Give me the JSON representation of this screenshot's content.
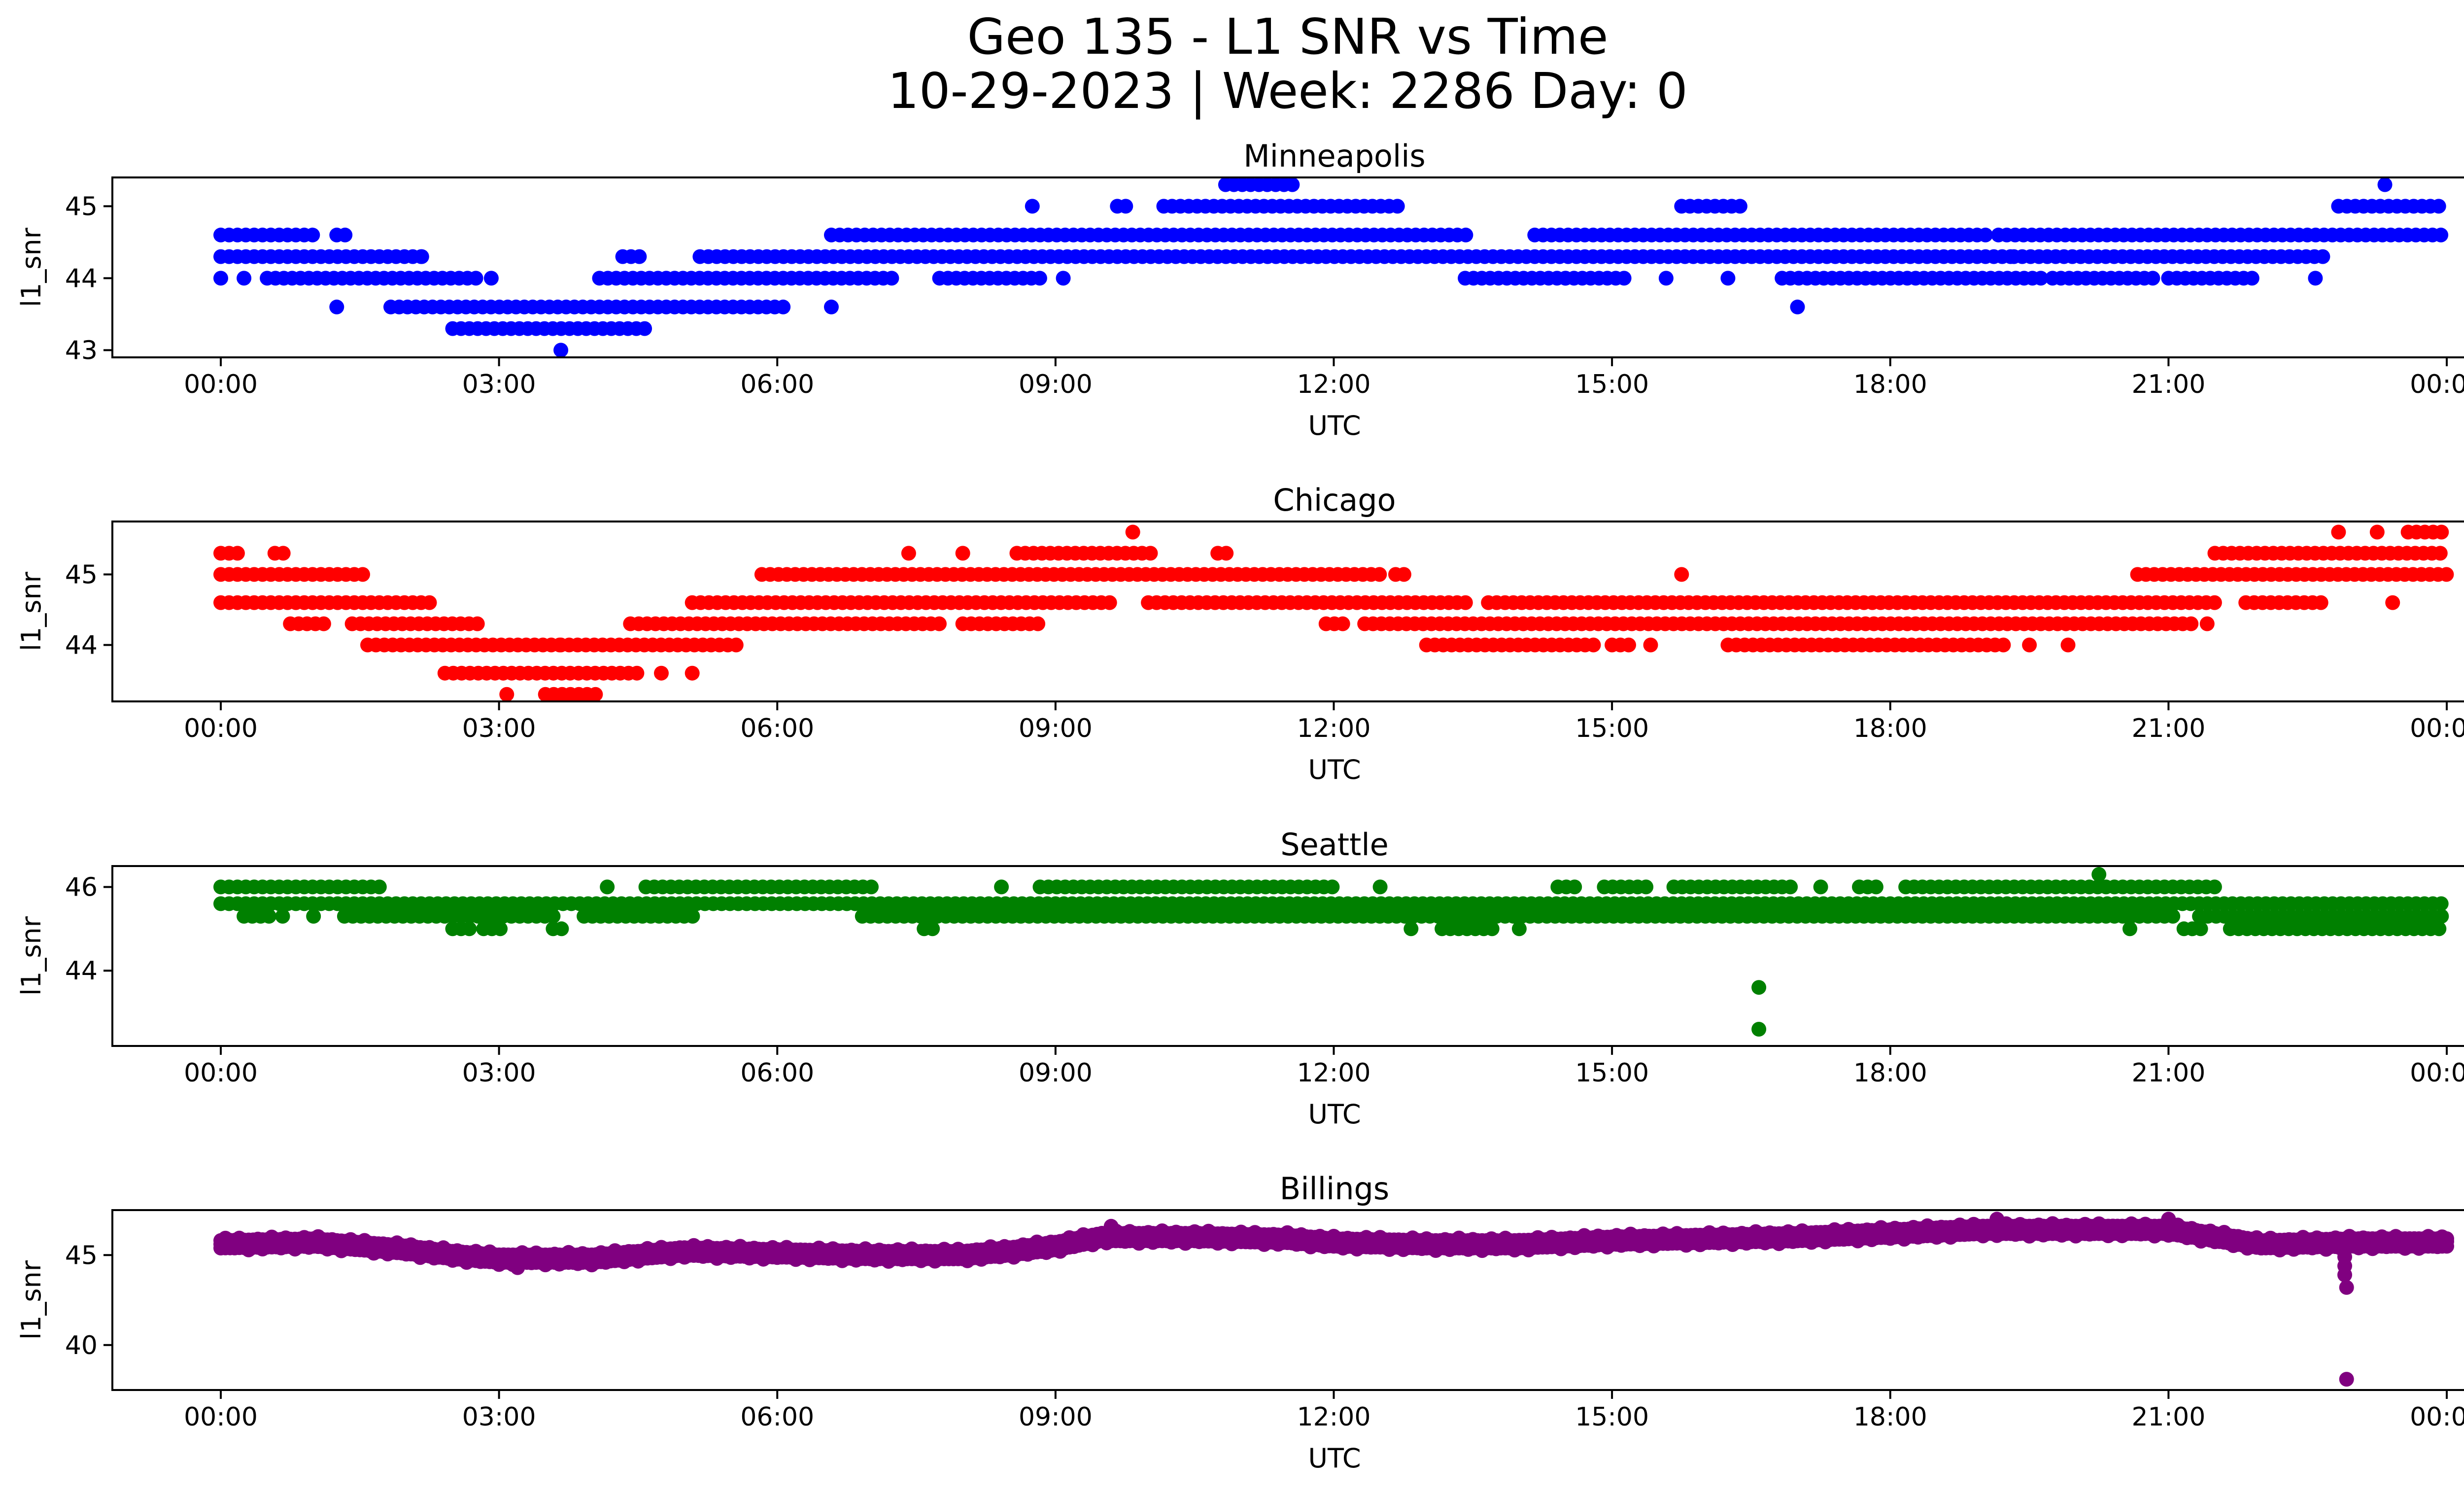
{
  "figure": {
    "title_line1": "Geo 135 - L1 SNR vs Time",
    "title_line2": "10-29-2023 | Week: 2286 Day: 0"
  },
  "chart_data": [
    {
      "type": "scatter",
      "title": "Minneapolis",
      "color": "#0000ff",
      "xlabel": "UTC",
      "ylabel": "l1_snr",
      "xlim": [
        "00:00",
        "24:00"
      ],
      "ylim": [
        42.9,
        45.4
      ],
      "xticks": [
        "00:00",
        "03:00",
        "06:00",
        "09:00",
        "12:00",
        "15:00",
        "18:00",
        "21:00",
        "00:00"
      ],
      "yticks": [
        43,
        44,
        45
      ],
      "levels": [
        {
          "y": 44.6,
          "segments": [
            [
              "00:00",
              "01:00"
            ],
            [
              "01:15",
              "01:25"
            ],
            [
              "06:35",
              "13:30"
            ],
            [
              "14:10",
              "19:05"
            ],
            [
              "19:10",
              "24:00"
            ]
          ]
        },
        {
          "y": 44.3,
          "segments": [
            [
              "00:00",
              "02:10"
            ],
            [
              "02:10",
              "02:15"
            ],
            [
              "04:20",
              "04:35"
            ],
            [
              "05:10",
              "19:20"
            ],
            [
              "19:20",
              "22:45"
            ]
          ]
        },
        {
          "y": 44.0,
          "segments": [
            [
              "00:00",
              "00:05"
            ],
            [
              "00:15",
              "00:20"
            ],
            [
              "00:30",
              "02:45"
            ],
            [
              "02:55",
              "03:00"
            ],
            [
              "04:05",
              "07:15"
            ],
            [
              "07:45",
              "08:50"
            ],
            [
              "09:05",
              "09:10"
            ],
            [
              "13:25",
              "14:30"
            ],
            [
              "14:30",
              "15:10"
            ],
            [
              "15:35",
              "15:40"
            ],
            [
              "16:15",
              "16:20"
            ],
            [
              "16:50",
              "19:40"
            ],
            [
              "19:45",
              "20:50"
            ],
            [
              "21:00",
              "21:55"
            ],
            [
              "22:35",
              "22:40"
            ]
          ]
        },
        {
          "y": 43.6,
          "segments": [
            [
              "01:15",
              "01:20"
            ],
            [
              "01:50",
              "06:05"
            ],
            [
              "06:35",
              "06:40"
            ],
            [
              "17:00",
              "17:05"
            ]
          ]
        },
        {
          "y": 43.3,
          "segments": [
            [
              "02:30",
              "04:35"
            ]
          ]
        },
        {
          "y": 43.0,
          "segments": [
            [
              "03:40",
              "03:45"
            ]
          ]
        },
        {
          "y": 45.0,
          "segments": [
            [
              "08:45",
              "08:50"
            ],
            [
              "09:40",
              "09:50"
            ],
            [
              "10:10",
              "12:45"
            ],
            [
              "15:45",
              "16:25"
            ],
            [
              "22:50",
              "24:00"
            ]
          ]
        },
        {
          "y": 45.3,
          "segments": [
            [
              "10:50",
              "11:35"
            ],
            [
              "23:20",
              "23:25"
            ]
          ]
        }
      ]
    },
    {
      "type": "scatter",
      "title": "Chicago",
      "color": "#ff0000",
      "xlabel": "UTC",
      "ylabel": "l1_snr",
      "xlim": [
        "00:00",
        "24:00"
      ],
      "ylim": [
        43.2,
        45.75
      ],
      "xticks": [
        "00:00",
        "03:00",
        "06:00",
        "09:00",
        "12:00",
        "15:00",
        "18:00",
        "21:00",
        "00:00"
      ],
      "yticks": [
        44,
        45
      ],
      "levels": [
        {
          "y": 45.3,
          "segments": [
            [
              "00:00",
              "00:15"
            ],
            [
              "00:35",
              "00:45"
            ],
            [
              "07:25",
              "07:30"
            ],
            [
              "08:00",
              "08:05"
            ],
            [
              "08:35",
              "10:05"
            ],
            [
              "10:45",
              "10:55"
            ],
            [
              "21:30",
              "24:00"
            ]
          ]
        },
        {
          "y": 45.0,
          "segments": [
            [
              "00:00",
              "01:35"
            ],
            [
              "05:50",
              "12:30"
            ],
            [
              "12:40",
              "12:50"
            ],
            [
              "15:45",
              "15:50"
            ],
            [
              "20:40",
              "24:00"
            ]
          ]
        },
        {
          "y": 44.6,
          "segments": [
            [
              "00:00",
              "02:15"
            ],
            [
              "05:05",
              "09:40"
            ],
            [
              "10:00",
              "13:30"
            ],
            [
              "13:40",
              "21:35"
            ],
            [
              "21:50",
              "22:40"
            ],
            [
              "23:25",
              "23:30"
            ]
          ]
        },
        {
          "y": 44.3,
          "segments": [
            [
              "00:45",
              "01:10"
            ],
            [
              "01:25",
              "02:50"
            ],
            [
              "04:25",
              "07:50"
            ],
            [
              "08:00",
              "08:50"
            ],
            [
              "11:55",
              "12:10"
            ],
            [
              "12:20",
              "21:15"
            ],
            [
              "21:25",
              "21:30"
            ]
          ]
        },
        {
          "y": 44.0,
          "segments": [
            [
              "01:35",
              "03:40"
            ],
            [
              "03:40",
              "05:35"
            ],
            [
              "13:00",
              "14:50"
            ],
            [
              "15:00",
              "15:15"
            ],
            [
              "15:25",
              "15:30"
            ],
            [
              "16:15",
              "19:15"
            ],
            [
              "19:30",
              "19:35"
            ],
            [
              "19:55",
              "20:00"
            ]
          ]
        },
        {
          "y": 43.6,
          "segments": [
            [
              "02:25",
              "04:30"
            ],
            [
              "04:45",
              "04:50"
            ],
            [
              "05:05",
              "05:10"
            ]
          ]
        },
        {
          "y": 43.3,
          "segments": [
            [
              "03:05",
              "03:10"
            ],
            [
              "03:30",
              "04:05"
            ]
          ]
        },
        {
          "y": 45.6,
          "segments": [
            [
              "09:50",
              "09:55"
            ],
            [
              "22:50",
              "22:55"
            ],
            [
              "23:15",
              "23:20"
            ],
            [
              "23:35",
              "24:00"
            ]
          ]
        }
      ]
    },
    {
      "type": "scatter",
      "title": "Seattle",
      "color": "#008000",
      "xlabel": "UTC",
      "ylabel": "l1_snr",
      "xlim": [
        "00:00",
        "24:00"
      ],
      "ylim": [
        42.2,
        46.5
      ],
      "xticks": [
        "00:00",
        "03:00",
        "06:00",
        "09:00",
        "12:00",
        "15:00",
        "18:00",
        "21:00",
        "00:00"
      ],
      "yticks": [
        44,
        46
      ],
      "levels": [
        {
          "y": 46.0,
          "segments": [
            [
              "00:00",
              "01:45"
            ],
            [
              "04:10",
              "04:15"
            ],
            [
              "04:35",
              "07:05"
            ],
            [
              "08:25",
              "08:30"
            ],
            [
              "08:50",
              "12:00"
            ],
            [
              "12:30",
              "12:35"
            ],
            [
              "14:25",
              "14:40"
            ],
            [
              "14:55",
              "15:25"
            ],
            [
              "15:40",
              "16:45"
            ],
            [
              "16:50",
              "17:00"
            ],
            [
              "17:15",
              "17:20"
            ],
            [
              "17:40",
              "17:55"
            ],
            [
              "18:10",
              "21:35"
            ]
          ]
        },
        {
          "y": 45.6,
          "segments": [
            [
              "00:00",
              "24:00"
            ]
          ]
        },
        {
          "y": 45.3,
          "segments": [
            [
              "00:15",
              "00:35"
            ],
            [
              "00:40",
              "00:45"
            ],
            [
              "01:00",
              "01:05"
            ],
            [
              "01:20",
              "03:40"
            ],
            [
              "03:55",
              "05:10"
            ],
            [
              "06:55",
              "21:05"
            ],
            [
              "21:20",
              "24:00"
            ]
          ]
        },
        {
          "y": 45.0,
          "segments": [
            [
              "02:30",
              "02:45"
            ],
            [
              "02:50",
              "03:05"
            ],
            [
              "03:35",
              "03:45"
            ],
            [
              "07:35",
              "07:45"
            ],
            [
              "12:50",
              "12:55"
            ],
            [
              "13:10",
              "13:45"
            ],
            [
              "14:00",
              "14:05"
            ],
            [
              "20:35",
              "20:40"
            ],
            [
              "21:10",
              "21:25"
            ],
            [
              "21:40",
              "23:55"
            ]
          ]
        },
        {
          "y": 46.3,
          "segments": [
            [
              "20:15",
              "20:20"
            ]
          ]
        },
        {
          "y": 43.6,
          "segments": [
            [
              "16:35",
              "16:40"
            ]
          ]
        },
        {
          "y": 42.6,
          "segments": [
            [
              "16:35",
              "16:40"
            ]
          ]
        }
      ]
    },
    {
      "type": "scatter",
      "title": "Billings",
      "color": "#800080",
      "xlabel": "UTC",
      "ylabel": "l1_snr",
      "xlim": [
        "00:00",
        "24:00"
      ],
      "ylim": [
        37.5,
        47.5
      ],
      "xticks": [
        "00:00",
        "03:00",
        "06:00",
        "09:00",
        "12:00",
        "15:00",
        "18:00",
        "21:00",
        "00:00"
      ],
      "yticks": [
        40,
        45
      ],
      "trend": [
        [
          0.0,
          45.6
        ],
        [
          1.0,
          45.7
        ],
        [
          2.0,
          45.3
        ],
        [
          2.5,
          45.0
        ],
        [
          3.0,
          44.8
        ],
        [
          4.0,
          44.8
        ],
        [
          5.0,
          45.2
        ],
        [
          6.0,
          45.1
        ],
        [
          7.0,
          45.0
        ],
        [
          8.0,
          45.0
        ],
        [
          8.5,
          45.2
        ],
        [
          9.0,
          45.5
        ],
        [
          9.5,
          46.0
        ],
        [
          10.5,
          46.0
        ],
        [
          11.5,
          45.9
        ],
        [
          12.0,
          45.7
        ],
        [
          13.0,
          45.6
        ],
        [
          14.0,
          45.6
        ],
        [
          15.0,
          45.8
        ],
        [
          16.0,
          45.9
        ],
        [
          17.0,
          46.0
        ],
        [
          18.0,
          46.2
        ],
        [
          19.0,
          46.4
        ],
        [
          20.0,
          46.4
        ],
        [
          21.0,
          46.4
        ],
        [
          21.5,
          46.0
        ],
        [
          22.0,
          45.6
        ],
        [
          23.0,
          45.7
        ],
        [
          24.0,
          45.7
        ]
      ],
      "spread": 0.35,
      "extra_points": [
        [
          22.9,
          44.9
        ],
        [
          22.9,
          44.4
        ],
        [
          22.9,
          43.9
        ],
        [
          22.92,
          43.2
        ],
        [
          22.92,
          38.1
        ],
        [
          19.15,
          47.0
        ],
        [
          21.0,
          47.0
        ],
        [
          9.6,
          46.6
        ],
        [
          3.2,
          44.3
        ]
      ]
    }
  ]
}
